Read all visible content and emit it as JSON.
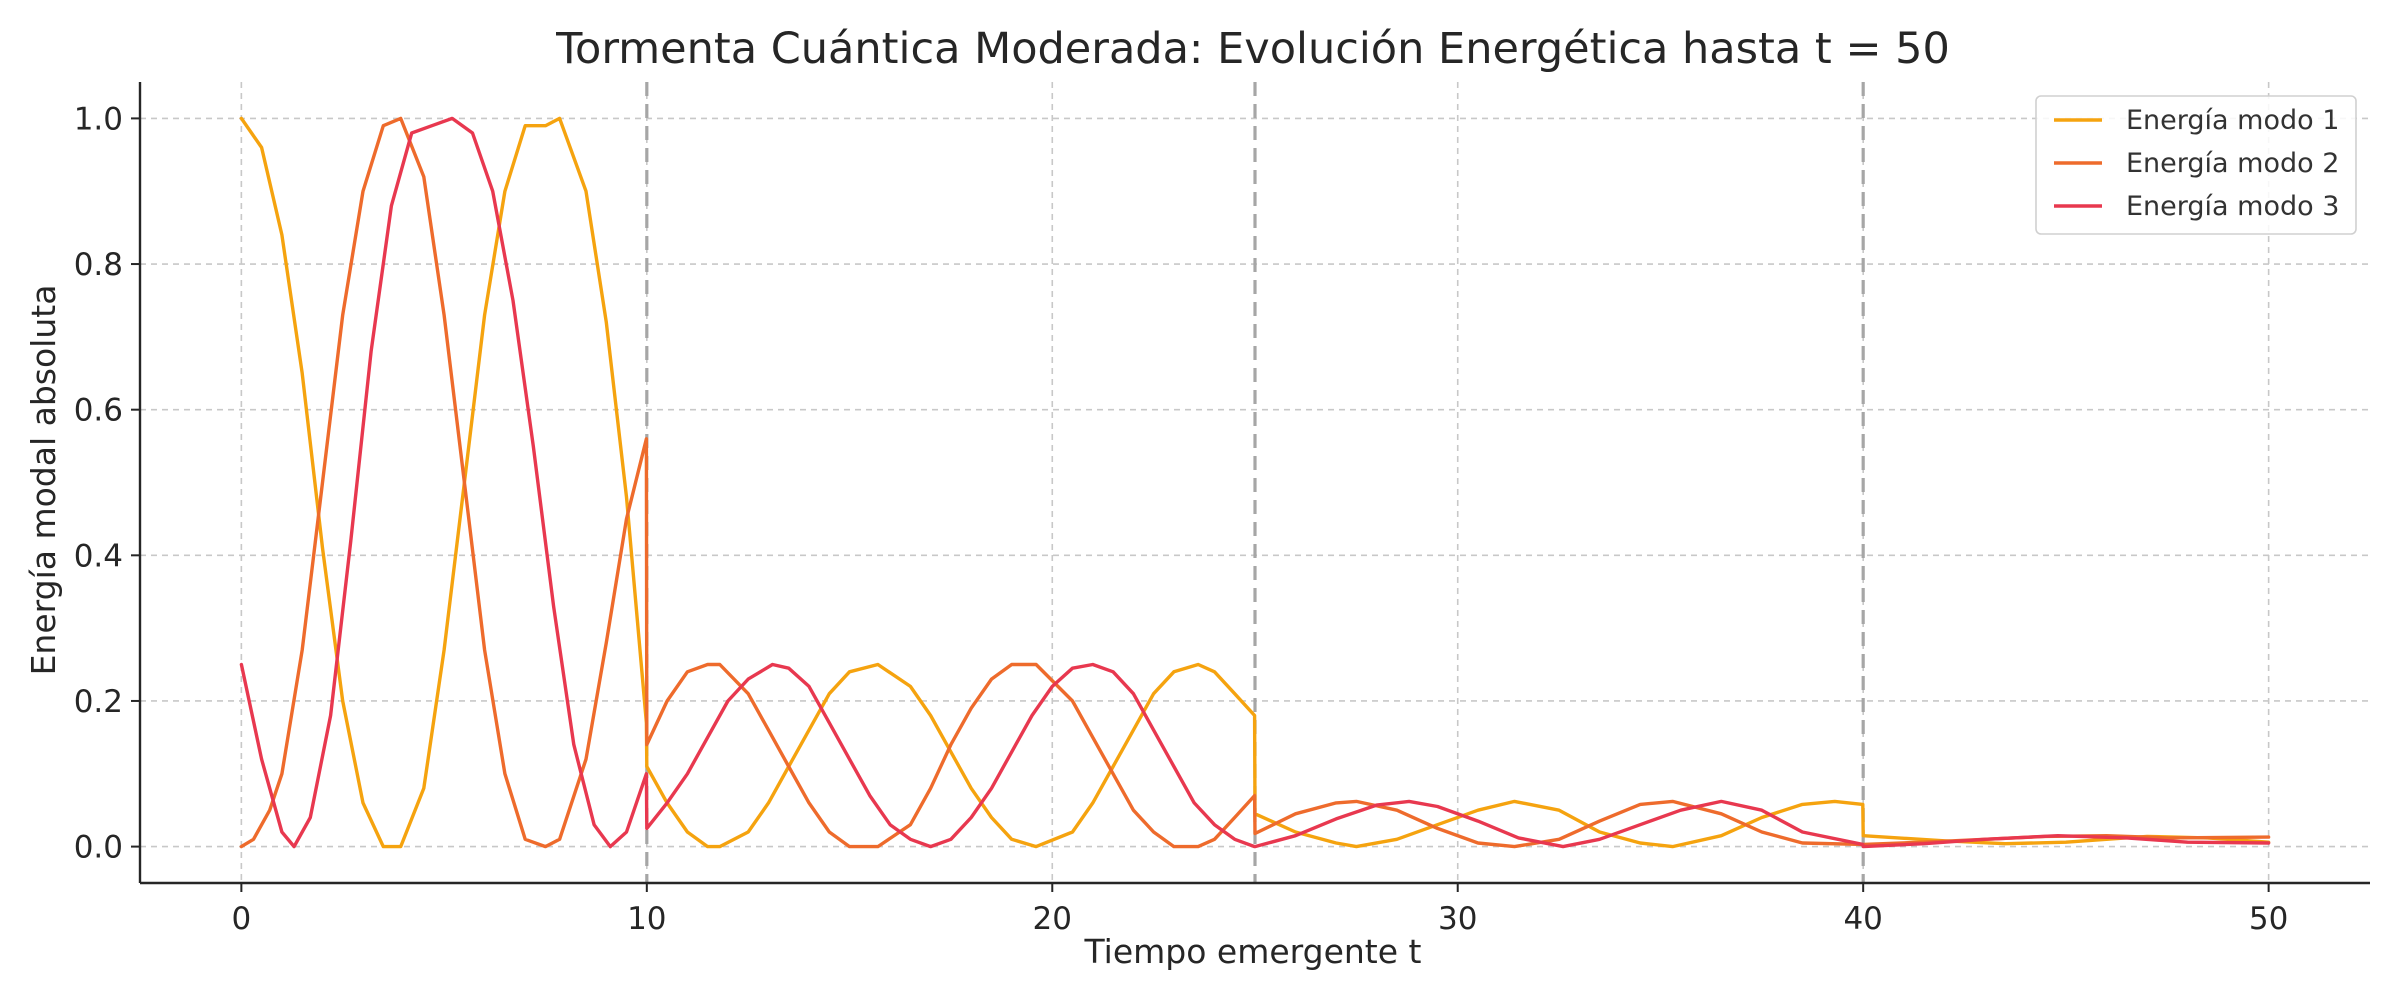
{
  "chart_data": {
    "type": "line",
    "title": "Tormenta Cuántica Moderada: Evolución Energética hasta t = 50",
    "xlabel": "Tiempo emergente t",
    "ylabel": "Energía modal absoluta",
    "xlim": [
      -2.5,
      52.5
    ],
    "ylim": [
      -0.05,
      1.05
    ],
    "xticks": [
      0,
      10,
      20,
      30,
      40,
      50
    ],
    "yticks": [
      0.0,
      0.2,
      0.4,
      0.6,
      0.8,
      1.0
    ],
    "xtick_labels": [
      "0",
      "10",
      "20",
      "30",
      "40",
      "50"
    ],
    "ytick_labels": [
      "0.0",
      "0.2",
      "0.4",
      "0.6",
      "0.8",
      "1.0"
    ],
    "grid": true,
    "legend_position": "top-right",
    "event_lines_x": [
      10,
      25,
      40
    ],
    "series": [
      {
        "name": "Energía modo 1",
        "color": "#F5A30F",
        "x": [
          0,
          0.5,
          1,
          1.5,
          2,
          2.5,
          3,
          3.5,
          3.93,
          4.5,
          5,
          5.5,
          6,
          6.5,
          7,
          7.5,
          7.85,
          8.5,
          9,
          9.5,
          9.99,
          10,
          10.5,
          11,
          11.5,
          11.8,
          12.5,
          13,
          13.5,
          14,
          14.5,
          15,
          15.7,
          16.5,
          17,
          17.5,
          18,
          18.5,
          19,
          19.6,
          20.5,
          21,
          21.5,
          22,
          22.5,
          23,
          23.6,
          24,
          24.5,
          24.99,
          25,
          26,
          27,
          27.5,
          28.5,
          29.5,
          30.5,
          31.4,
          32.5,
          33.5,
          34.5,
          35.3,
          36.5,
          37.5,
          38.5,
          39.3,
          39.99,
          40,
          42,
          43.5,
          45,
          47,
          48.5,
          50
        ],
        "values": [
          1.0,
          0.96,
          0.84,
          0.65,
          0.41,
          0.2,
          0.06,
          0.0,
          0.0,
          0.08,
          0.27,
          0.5,
          0.73,
          0.9,
          0.99,
          0.99,
          1.0,
          0.9,
          0.72,
          0.48,
          0.17,
          0.11,
          0.06,
          0.02,
          0.0,
          0.0,
          0.02,
          0.06,
          0.11,
          0.16,
          0.21,
          0.24,
          0.25,
          0.22,
          0.18,
          0.13,
          0.08,
          0.04,
          0.01,
          0.0,
          0.02,
          0.06,
          0.11,
          0.16,
          0.21,
          0.24,
          0.25,
          0.24,
          0.21,
          0.18,
          0.045,
          0.02,
          0.005,
          0.0,
          0.01,
          0.03,
          0.05,
          0.062,
          0.05,
          0.02,
          0.005,
          0.0,
          0.015,
          0.04,
          0.058,
          0.062,
          0.058,
          0.015,
          0.008,
          0.004,
          0.006,
          0.014,
          0.012,
          0.006
        ]
      },
      {
        "name": "Energía modo 2",
        "color": "#EE6B2C",
        "x": [
          0,
          0.3,
          0.7,
          1,
          1.5,
          2,
          2.5,
          3,
          3.5,
          3.93,
          4.5,
          5,
          5.5,
          6,
          6.5,
          7,
          7.5,
          7.85,
          8.5,
          9,
          9.5,
          9.99,
          10,
          10.5,
          11,
          11.5,
          11.8,
          12.5,
          13,
          13.5,
          14,
          14.5,
          15,
          15.7,
          16.5,
          17,
          17.5,
          18,
          18.5,
          19,
          19.6,
          20.5,
          21,
          21.5,
          22,
          22.5,
          23,
          23.6,
          24,
          24.5,
          24.99,
          25,
          26,
          27,
          27.5,
          28.5,
          29.5,
          30.5,
          31.4,
          32.5,
          33.5,
          34.5,
          35.3,
          36.5,
          37.5,
          38.5,
          39.99,
          40,
          41.5,
          43,
          44.5,
          46,
          47.5,
          50
        ],
        "values": [
          0.0,
          0.01,
          0.05,
          0.1,
          0.27,
          0.5,
          0.73,
          0.9,
          0.99,
          1.0,
          0.92,
          0.73,
          0.5,
          0.27,
          0.1,
          0.01,
          0.0,
          0.01,
          0.12,
          0.28,
          0.45,
          0.56,
          0.14,
          0.2,
          0.24,
          0.25,
          0.25,
          0.21,
          0.16,
          0.11,
          0.06,
          0.02,
          0.0,
          0.0,
          0.03,
          0.08,
          0.14,
          0.19,
          0.23,
          0.25,
          0.25,
          0.2,
          0.15,
          0.1,
          0.05,
          0.02,
          0.0,
          0.0,
          0.01,
          0.04,
          0.07,
          0.018,
          0.045,
          0.06,
          0.062,
          0.05,
          0.025,
          0.005,
          0.0,
          0.01,
          0.035,
          0.058,
          0.062,
          0.045,
          0.02,
          0.005,
          0.003,
          0.003,
          0.006,
          0.01,
          0.014,
          0.015,
          0.012,
          0.013
        ]
      },
      {
        "name": "Energía modo 3",
        "color": "#E8384F",
        "x": [
          0,
          0.5,
          1,
          1.3,
          1.7,
          2.2,
          2.7,
          3.2,
          3.7,
          4.2,
          4.7,
          5.2,
          5.7,
          6.2,
          6.7,
          7.2,
          7.7,
          8.2,
          8.7,
          9.1,
          9.5,
          9.99,
          10,
          10.5,
          11,
          11.5,
          12,
          12.5,
          13.1,
          13.5,
          14,
          14.5,
          15,
          15.5,
          16,
          16.5,
          17,
          17.5,
          18,
          18.5,
          19,
          19.5,
          20,
          20.5,
          21,
          21.5,
          22,
          22.5,
          23,
          23.5,
          24,
          24.5,
          24.99,
          25,
          26,
          27,
          28,
          28.8,
          29.5,
          30.5,
          31.5,
          32.6,
          33.5,
          34.5,
          35.5,
          36.5,
          37.5,
          38.5,
          39.99,
          40,
          41.5,
          43,
          44.8,
          46.5,
          48,
          50
        ],
        "values": [
          0.25,
          0.12,
          0.02,
          0.0,
          0.04,
          0.18,
          0.42,
          0.68,
          0.88,
          0.98,
          0.99,
          1.0,
          0.98,
          0.9,
          0.75,
          0.55,
          0.33,
          0.14,
          0.03,
          0.0,
          0.02,
          0.1,
          0.025,
          0.06,
          0.1,
          0.15,
          0.2,
          0.23,
          0.25,
          0.245,
          0.22,
          0.17,
          0.12,
          0.07,
          0.03,
          0.01,
          0.0,
          0.01,
          0.04,
          0.08,
          0.13,
          0.18,
          0.22,
          0.245,
          0.25,
          0.24,
          0.21,
          0.16,
          0.11,
          0.06,
          0.03,
          0.01,
          0.0,
          0.0,
          0.015,
          0.038,
          0.057,
          0.062,
          0.055,
          0.035,
          0.012,
          0.0,
          0.01,
          0.03,
          0.05,
          0.062,
          0.05,
          0.02,
          0.003,
          0.0,
          0.004,
          0.01,
          0.015,
          0.012,
          0.006,
          0.005
        ]
      }
    ]
  }
}
